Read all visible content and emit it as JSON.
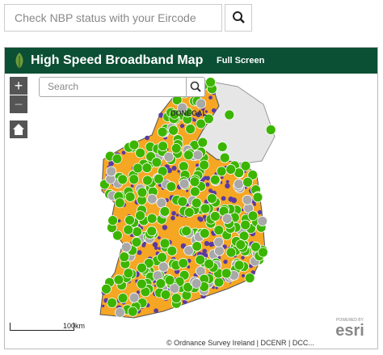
{
  "search_bar": {
    "placeholder": "Check NBP status with your Eircode"
  },
  "map": {
    "title": "High Speed Broadband Map",
    "full_screen": "Full Screen",
    "search_placeholder": "Search",
    "zoom_in": "+",
    "zoom_out": "−",
    "labels": [
      "DONEGAL"
    ],
    "scale": "100km",
    "attribution": "© Ordnance Survey Ireland | DCENR | DCC...",
    "esri_logo": {
      "top": "POWERED BY",
      "brand": "esri"
    }
  }
}
